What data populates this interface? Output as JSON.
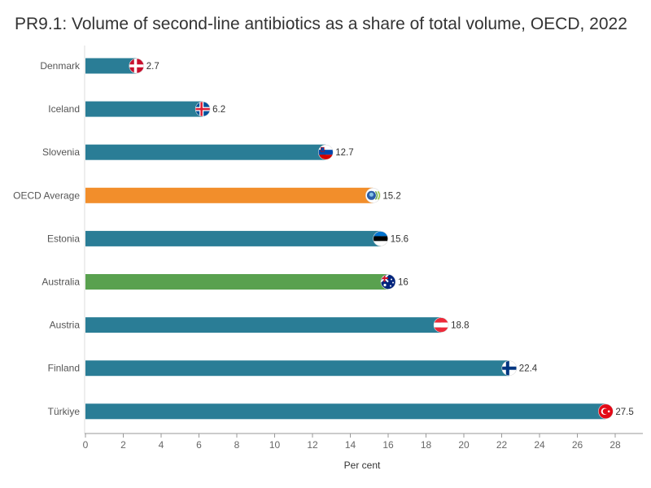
{
  "chart_data": {
    "type": "bar",
    "orientation": "horizontal",
    "title": "PR9.1: Volume of second-line antibiotics as a share of total volume, OECD, 2022",
    "xlabel": "Per cent",
    "ylabel": "",
    "xlim": [
      0,
      29
    ],
    "xticks": [
      0,
      2,
      4,
      6,
      8,
      10,
      12,
      14,
      16,
      18,
      20,
      22,
      24,
      26,
      28
    ],
    "grid": false,
    "categories": [
      "Denmark",
      "Iceland",
      "Slovenia",
      "OECD Average",
      "Estonia",
      "Australia",
      "Austria",
      "Finland",
      "Türkiye"
    ],
    "values": [
      2.7,
      6.2,
      12.7,
      15.2,
      15.6,
      16,
      18.8,
      22.4,
      27.5
    ],
    "value_labels": [
      "2.7",
      "6.2",
      "12.7",
      "15.2",
      "15.6",
      "16",
      "18.8",
      "22.4",
      "27.5"
    ],
    "bar_colors": [
      "#2a7d96",
      "#2a7d96",
      "#2a7d96",
      "#f28e2b",
      "#2a7d96",
      "#59a14f",
      "#2a7d96",
      "#2a7d96",
      "#2a7d96"
    ],
    "flag_icons": [
      "flag-denmark-icon",
      "flag-iceland-icon",
      "flag-slovenia-icon",
      "oecd-logo-icon",
      "flag-estonia-icon",
      "flag-australia-icon",
      "flag-austria-icon",
      "flag-finland-icon",
      "flag-turkiye-icon"
    ]
  },
  "colors": {
    "default_bar": "#2a7d96",
    "oecd_average": "#f28e2b",
    "highlight": "#59a14f",
    "text": "#555555",
    "axis": "#999999"
  }
}
